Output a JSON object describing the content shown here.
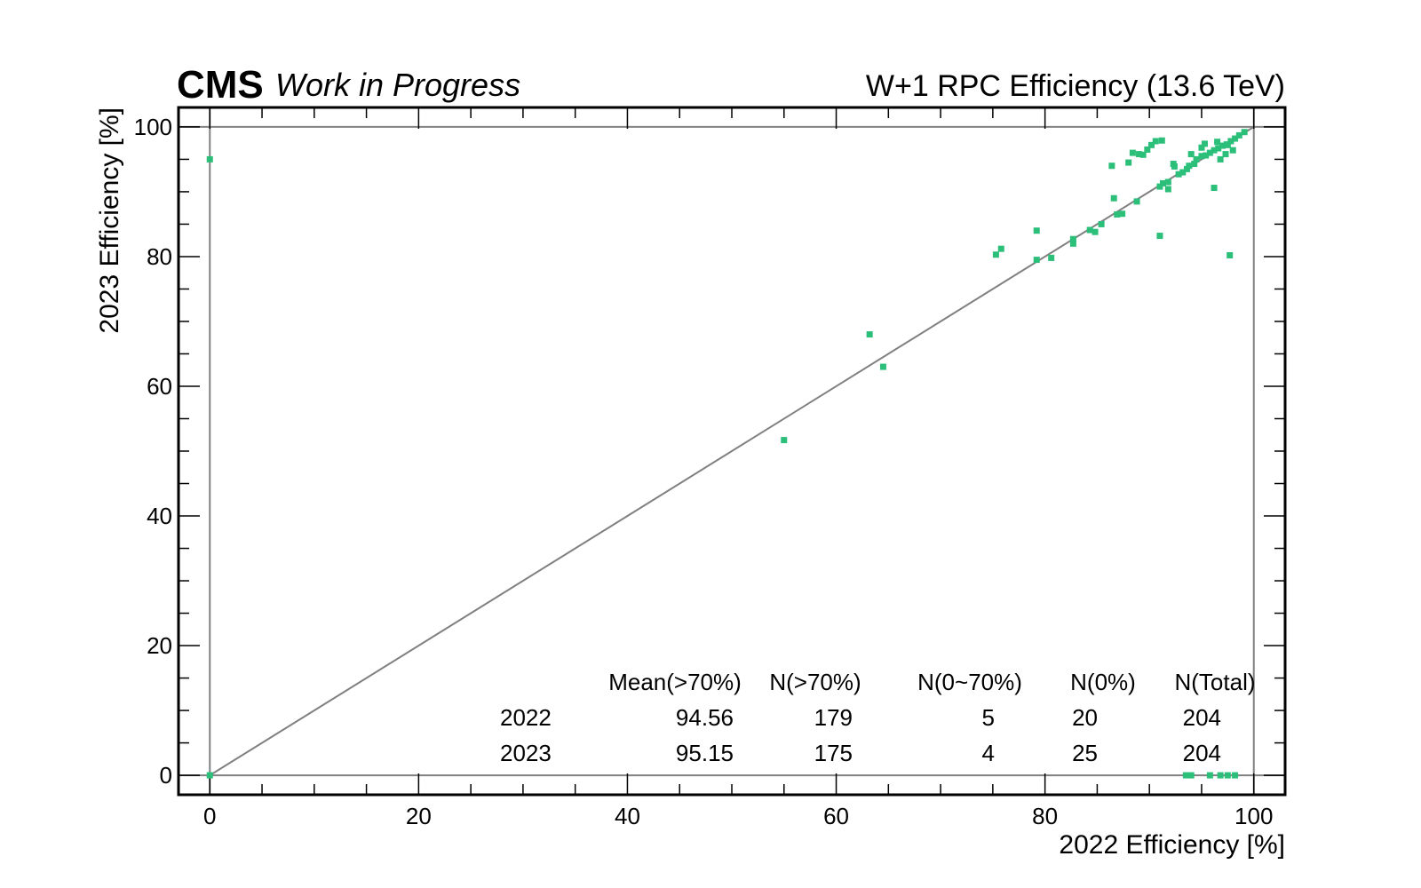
{
  "header": {
    "experiment": "CMS",
    "status": "Work in Progress",
    "title": "W+1 RPC Efficiency (13.6 TeV)"
  },
  "colors": {
    "marker": "#2bbf7a",
    "reference_lines": "#808080",
    "frame": "#000000"
  },
  "chart_data": {
    "type": "scatter",
    "title": "W+1 RPC Efficiency (13.6 TeV)",
    "xlabel": "2022 Efficiency [%]",
    "ylabel": "2023 Efficiency [%]",
    "xlim": [
      -3,
      103
    ],
    "ylim": [
      -3,
      103
    ],
    "x_ticks": [
      0,
      20,
      40,
      60,
      80,
      100
    ],
    "y_ticks": [
      0,
      20,
      40,
      60,
      80,
      100
    ],
    "grid": false,
    "reference_lines": [
      "y = x",
      "x = 0",
      "y = 0",
      "x = 100",
      "y = 100"
    ],
    "points": [
      [
        0,
        95
      ],
      [
        0,
        0
      ],
      [
        55,
        51.7
      ],
      [
        63.2,
        68
      ],
      [
        64.5,
        63
      ],
      [
        75.3,
        80.3
      ],
      [
        75.8,
        81.2
      ],
      [
        79.2,
        84
      ],
      [
        79.2,
        79.5
      ],
      [
        80.6,
        79.8
      ],
      [
        82.7,
        82.7
      ],
      [
        82.7,
        82
      ],
      [
        84.3,
        84.1
      ],
      [
        84.8,
        83.8
      ],
      [
        85.4,
        85
      ],
      [
        86.4,
        94
      ],
      [
        86.6,
        89
      ],
      [
        86.9,
        86.5
      ],
      [
        87.4,
        86.6
      ],
      [
        88,
        94.5
      ],
      [
        88.4,
        96
      ],
      [
        88.8,
        88.5
      ],
      [
        89,
        95.8
      ],
      [
        89.4,
        95.7
      ],
      [
        89.8,
        96.5
      ],
      [
        90.2,
        97.2
      ],
      [
        90.6,
        97.8
      ],
      [
        91.2,
        97.9
      ],
      [
        91,
        90.8
      ],
      [
        91.3,
        91.3
      ],
      [
        91,
        83.2
      ],
      [
        91.8,
        91.5
      ],
      [
        91.8,
        90.4
      ],
      [
        92.3,
        94.3
      ],
      [
        92.8,
        92.7
      ],
      [
        93.2,
        93
      ],
      [
        93.6,
        93.5
      ],
      [
        93.8,
        94
      ],
      [
        94.3,
        94.3
      ],
      [
        94.5,
        95
      ],
      [
        95,
        95.5
      ],
      [
        95.4,
        95.6
      ],
      [
        95.8,
        96
      ],
      [
        96.2,
        96.4
      ],
      [
        96.6,
        96.7
      ],
      [
        97,
        97.1
      ],
      [
        97.4,
        97.3
      ],
      [
        97.8,
        97.8
      ],
      [
        98.2,
        98.2
      ],
      [
        98.6,
        98.7
      ],
      [
        99.1,
        99.2
      ],
      [
        95.3,
        97.4
      ],
      [
        96.8,
        95
      ],
      [
        97.3,
        95.8
      ],
      [
        98,
        96.4
      ],
      [
        96.2,
        90.6
      ],
      [
        97.7,
        80.2
      ],
      [
        92.4,
        93.9
      ],
      [
        94,
        95.8
      ],
      [
        95,
        96.8
      ],
      [
        96.5,
        97.7
      ],
      [
        97.5,
        97.2
      ],
      [
        93.5,
        0
      ],
      [
        94,
        0
      ],
      [
        95.8,
        0
      ],
      [
        96.8,
        0
      ],
      [
        97.5,
        0
      ],
      [
        98.2,
        0
      ]
    ],
    "summary_table": {
      "headers": [
        "",
        "Mean(>70%)",
        "N(>70%)",
        "N(0~70%)",
        "N(0%)",
        "N(Total)"
      ],
      "rows": [
        [
          "2022",
          "94.56",
          "179",
          "5",
          "20",
          "204"
        ],
        [
          "2023",
          "95.15",
          "175",
          "4",
          "25",
          "204"
        ]
      ]
    }
  }
}
